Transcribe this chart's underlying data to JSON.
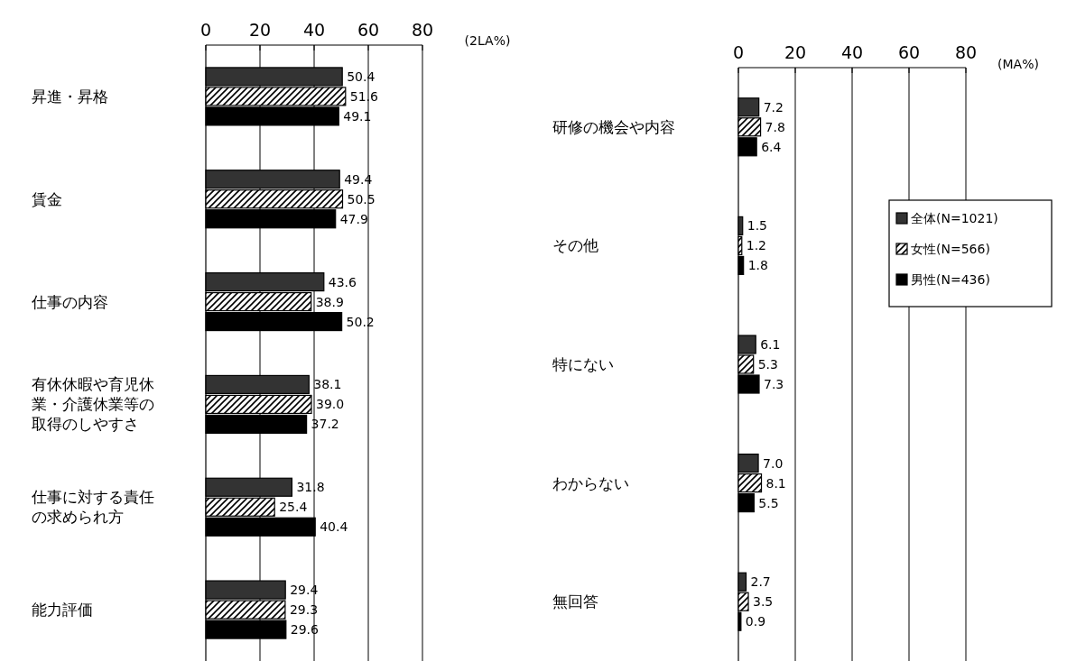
{
  "chart_data": [
    {
      "type": "bar",
      "orientation": "horizontal",
      "categories": [
        "昇進・昇格",
        "賃金",
        "仕事の内容",
        "有休休暇や育児休業・介護休業等の取得のしやすさ",
        "仕事に対する責任の求められ方",
        "能力評価"
      ],
      "series": [
        {
          "color": "#333333",
          "values": [
            50.4,
            49.4,
            43.6,
            38.1,
            31.8,
            29.4
          ],
          "value_labels": [
            "50.4",
            "49.4",
            "43.6",
            "38.1",
            "31.8",
            "29.4"
          ]
        },
        {
          "color": "#000000",
          "values": [
            51.6,
            50.5,
            38.9,
            39.0,
            25.4,
            29.3
          ],
          "value_labels": [
            "51.6",
            "50.5",
            "38.9",
            "39.0",
            "25.4",
            "29.3"
          ]
        },
        {
          "color": "#000000",
          "values": [
            49.1,
            47.9,
            50.2,
            37.2,
            40.4,
            29.6
          ],
          "value_labels": [
            "49.1",
            "47.9",
            "50.2",
            "37.2",
            "40.4",
            "29.6"
          ]
        }
      ],
      "xlim": [
        0,
        80
      ],
      "xticks": [
        0,
        20,
        40,
        60,
        80
      ],
      "grid": "x",
      "annotations": [
        "(2LA%)"
      ]
    },
    {
      "type": "bar",
      "orientation": "horizontal",
      "categories": [
        "研修の機会や内容",
        "その他",
        "特にない",
        "わからない",
        "無回答"
      ],
      "series": [
        {
          "name": "全体(N=1021)",
          "color": "#333333",
          "values": [
            7.2,
            1.5,
            6.1,
            7.0,
            2.7
          ],
          "value_labels": [
            "7.2",
            "1.5",
            "6.1",
            "7.0",
            "2.7"
          ]
        },
        {
          "name": "女性(N=566)",
          "color": "#000000",
          "values": [
            7.8,
            1.2,
            5.3,
            8.1,
            3.5
          ],
          "value_labels": [
            "7.8",
            "1.2",
            "5.3",
            "8.1",
            "3.5"
          ]
        },
        {
          "name": "男性(N=436)",
          "color": "#000000",
          "values": [
            6.4,
            1.8,
            7.3,
            5.5,
            0.9
          ],
          "value_labels": [
            "6.4",
            "1.8",
            "7.3",
            "5.5",
            "0.9"
          ]
        }
      ],
      "xlim": [
        0,
        80
      ],
      "xticks": [
        0,
        20,
        40,
        60,
        80
      ],
      "grid": "x",
      "legend": "right",
      "annotations": [
        "(MA%)"
      ]
    }
  ]
}
